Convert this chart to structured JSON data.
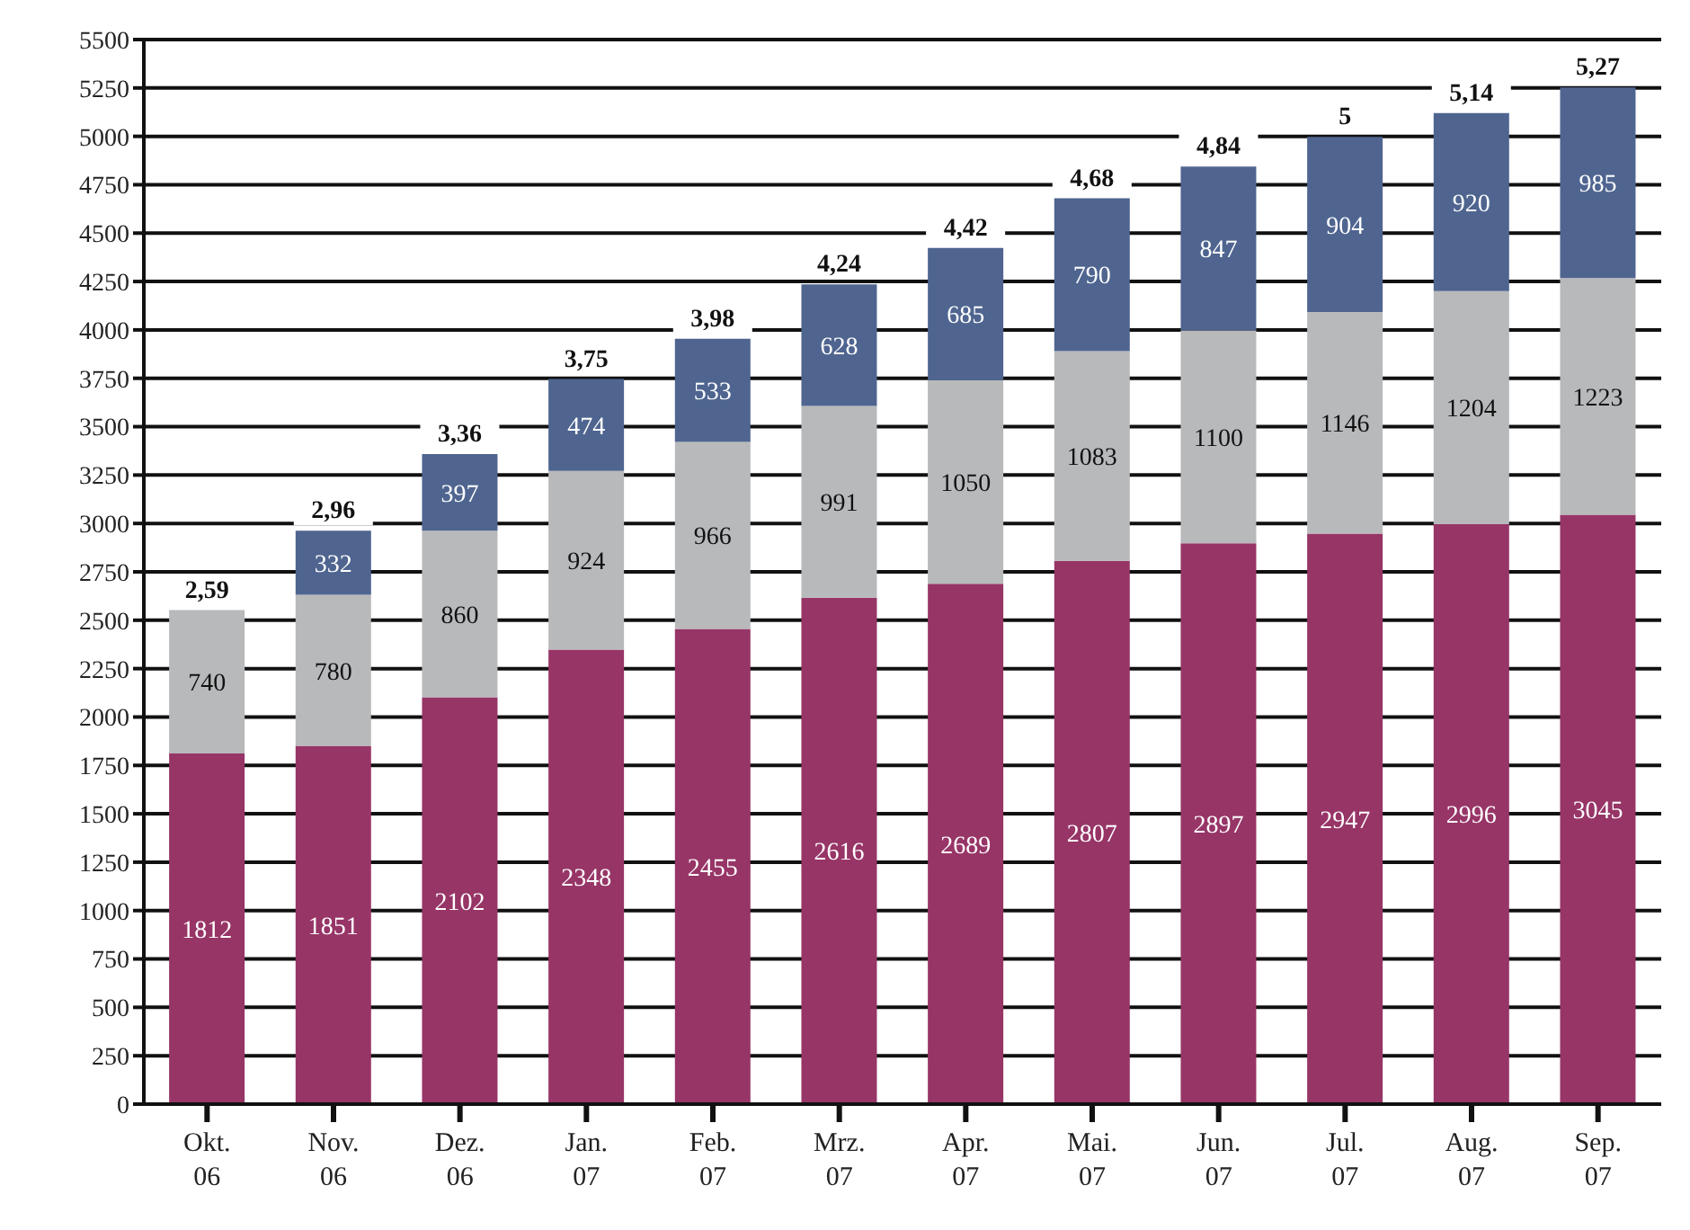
{
  "chart_data": {
    "type": "bar",
    "stacked": true,
    "categories": [
      "Okt. 06",
      "Nov. 06",
      "Dez. 06",
      "Jan. 07",
      "Feb. 07",
      "Mrz. 07",
      "Apr. 07",
      "Mai. 07",
      "Jun. 07",
      "Jul. 07",
      "Aug. 07",
      "Sep. 07"
    ],
    "series": [
      {
        "color": "#973567",
        "values": [
          1812,
          1851,
          2102,
          2348,
          2455,
          2616,
          2689,
          2807,
          2897,
          2947,
          2996,
          3045
        ]
      },
      {
        "color": "#b8b9bb",
        "values": [
          740,
          780,
          860,
          924,
          966,
          991,
          1050,
          1083,
          1100,
          1146,
          1204,
          1223
        ]
      },
      {
        "color": "#4f6590",
        "values": [
          null,
          332,
          397,
          474,
          533,
          628,
          685,
          790,
          847,
          904,
          920,
          985
        ]
      }
    ],
    "annotations": [
      {
        "text": "2,59",
        "x": "Okt. 06",
        "y": 2552
      },
      {
        "text": "2,96",
        "x": "Nov. 06",
        "y": 2963
      },
      {
        "text": "3,36",
        "x": "Dez. 06",
        "y": 3359
      },
      {
        "text": "3,75",
        "x": "Jan. 07",
        "y": 3746
      },
      {
        "text": "3,98",
        "x": "Feb. 07",
        "y": 3954
      },
      {
        "text": "4,24",
        "x": "Mrz. 07",
        "y": 4235
      },
      {
        "text": "4,42",
        "x": "Apr. 07",
        "y": 4424
      },
      {
        "text": "4,68",
        "x": "Mai. 07",
        "y": 4680
      },
      {
        "text": "4,84",
        "x": "Jun. 07",
        "y": 4844
      },
      {
        "text": "5",
        "x": "Jul. 07",
        "y": 4997
      },
      {
        "text": "5,14",
        "x": "Aug. 07",
        "y": 5120
      },
      {
        "text": "5,27",
        "x": "Sep. 07",
        "y": 5253
      }
    ],
    "data_labels": true,
    "ylim": [
      0,
      5500
    ],
    "yticks": [
      0,
      250,
      500,
      750,
      1000,
      1250,
      1500,
      1750,
      2000,
      2250,
      2500,
      2750,
      3000,
      3250,
      3500,
      3750,
      4000,
      4250,
      4500,
      4750,
      5000,
      5250,
      5500
    ],
    "grid": "y",
    "legend": false
  }
}
